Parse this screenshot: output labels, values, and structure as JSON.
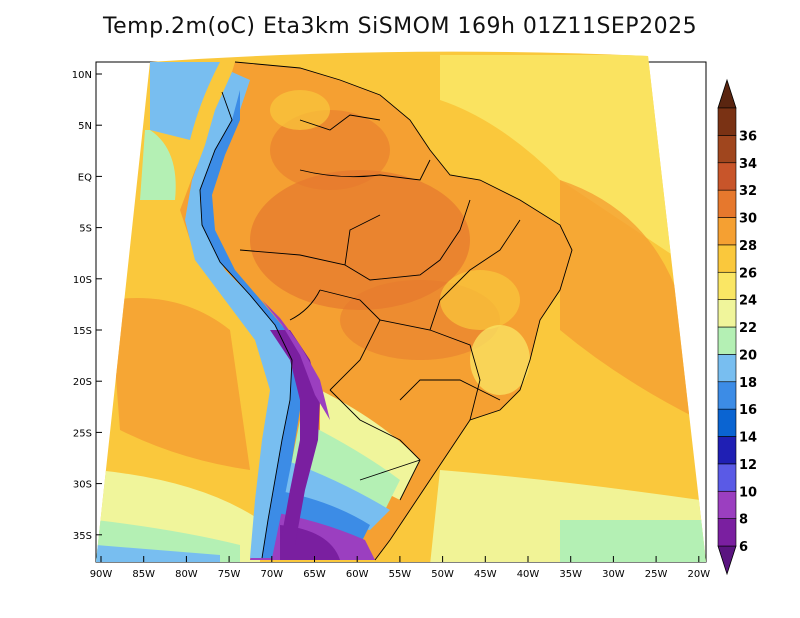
{
  "title": "Temp.2m(oC) Eta3km SiSMOM 169h 01Z11SEP2025",
  "map": {
    "lat_labels": [
      "10N",
      "5N",
      "EQ",
      "5S",
      "10S",
      "15S",
      "20S",
      "25S",
      "30S",
      "35S"
    ],
    "lon_labels": [
      "90W",
      "85W",
      "80W",
      "75W",
      "70W",
      "65W",
      "60W",
      "55W",
      "50W",
      "45W",
      "40W",
      "35W",
      "30W",
      "25W",
      "20W"
    ]
  },
  "colorbar": {
    "labels": [
      "6",
      "8",
      "10",
      "12",
      "14",
      "16",
      "18",
      "20",
      "22",
      "24",
      "26",
      "28",
      "30",
      "32",
      "34",
      "36"
    ],
    "colors": [
      "#7a1fa0",
      "#9b3fc0",
      "#5a5ae6",
      "#1f1fb4",
      "#0a64d2",
      "#3c8ce6",
      "#78bef0",
      "#b4f0b4",
      "#f0f59b",
      "#fae664",
      "#fac83c",
      "#f5a032",
      "#e6782d",
      "#c8552a",
      "#a0461e",
      "#7a3214"
    ],
    "low_color": "#5a1480",
    "high_color": "#5a2510"
  }
}
